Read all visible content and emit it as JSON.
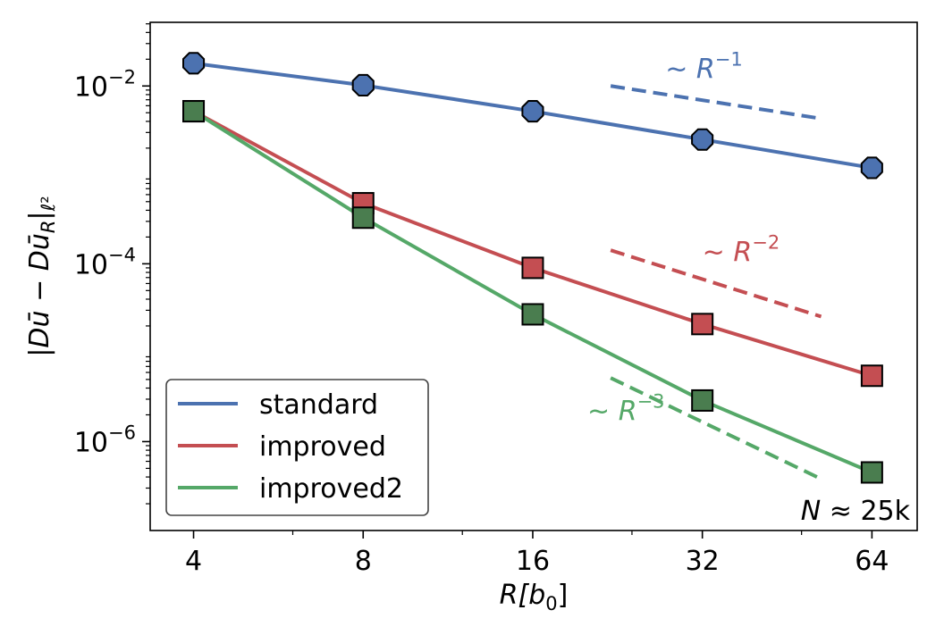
{
  "chart_data": {
    "type": "line",
    "title": "",
    "xscale": "log2",
    "yscale": "log",
    "xlabel": {
      "base": "R[b",
      "sub": "0",
      "end": "]"
    },
    "ylabel": "|Dū − Dū_R|_ℓ²",
    "ylabel_parts": {
      "pre": "|Dū − Dū",
      "sub1": "R",
      "mid": "|",
      "sub2": "ℓ²"
    },
    "x": [
      4,
      8,
      16,
      32,
      64
    ],
    "xticks": [
      "4",
      "8",
      "16",
      "32",
      "64"
    ],
    "xlim": [
      3.35,
      77
    ],
    "ylim": [
      1e-07,
      0.052
    ],
    "yticks": [
      {
        "value": 0.01,
        "base": "10",
        "exp": "−2"
      },
      {
        "value": 0.0001,
        "base": "10",
        "exp": "−4"
      },
      {
        "value": 1e-06,
        "base": "10",
        "exp": "−6"
      }
    ],
    "grid": false,
    "legend_position": "lower-left",
    "series": [
      {
        "name": "standard",
        "color": "#4c72b0",
        "marker": "octagon",
        "values": [
          0.018,
          0.0102,
          0.0052,
          0.0025,
          0.0012
        ]
      },
      {
        "name": "improved",
        "color": "#c44e52",
        "marker": "square",
        "values": [
          0.0052,
          0.00048,
          9e-05,
          2.1e-05,
          5.5e-06
        ]
      },
      {
        "name": "improved2",
        "color": "#55a868",
        "marker": "square",
        "marker_color": "#4a7d4f",
        "values": [
          0.0052,
          0.00033,
          2.7e-05,
          2.9e-06,
          4.5e-07
        ]
      }
    ],
    "reference_lines": [
      {
        "color": "#4c72b0",
        "x": [
          22,
          52
        ],
        "y": [
          0.01,
          0.0043
        ],
        "label_base": "~ R",
        "label_exp": "−1",
        "label_at": [
          27.5,
          0.0122
        ]
      },
      {
        "color": "#c44e52",
        "x": [
          22,
          52
        ],
        "y": [
          0.000142,
          2.55e-05
        ],
        "label_base": "~ R",
        "label_exp": "−2",
        "label_at": [
          32,
          0.000107
        ]
      },
      {
        "color": "#55a868",
        "x": [
          22,
          52
        ],
        "y": [
          5.2e-06,
          3.8e-07
        ],
        "label_base": "~ R",
        "label_exp": "−3",
        "label_at": [
          20,
          1.75e-06
        ]
      }
    ],
    "annotation": {
      "text": "N ≈ 25k",
      "italic_part": "N",
      "rest": " ≈ 25k"
    }
  }
}
